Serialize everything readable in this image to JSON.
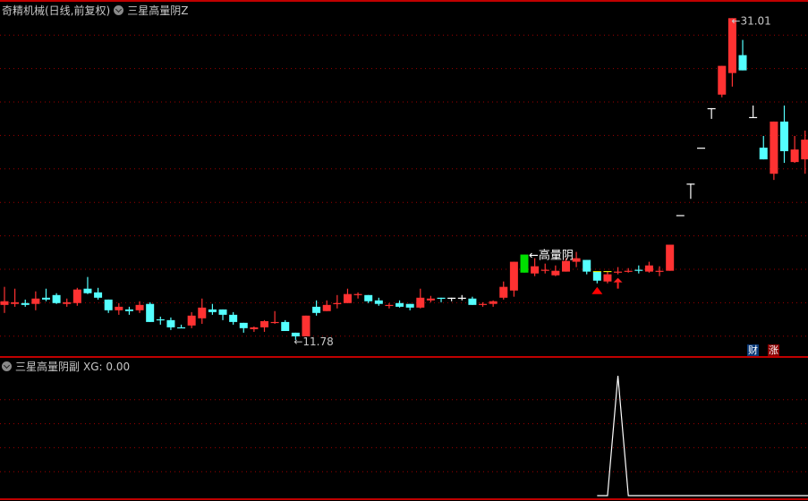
{
  "header": {
    "stock_title": "奇精机械(日线,前复权)",
    "indicator_main": "三星高量阴Z",
    "indicator_sub": "三星高量阴副",
    "sub_readout": "XG: 0.00"
  },
  "badges": {
    "finance": "财",
    "limit": "涨"
  },
  "colors": {
    "up": "#ff3232",
    "down": "#54ffff",
    "flat": "#ffffff",
    "signal": "#00e000",
    "grid": "#a00000",
    "border": "#c00000",
    "badge_finance": "#0a3a78",
    "badge_limit": "#8a0000"
  },
  "chart_data": {
    "type": "candlestick",
    "price_grid": [
      12,
      14,
      16,
      18,
      20,
      22,
      24,
      26,
      28,
      30
    ],
    "grid": true,
    "annotations": {
      "low_label": "←11.78",
      "low_index": 28,
      "high_label": "←31.01",
      "high_index": 70,
      "signal_label": "←高量阴",
      "signal_index": 50,
      "triangle_index": 57,
      "arrow_index": 59,
      "yellow_top_indices": [
        57,
        58
      ]
    },
    "candles": [
      [
        13.87,
        14.95,
        13.39,
        14.09
      ],
      [
        13.93,
        14.84,
        13.76,
        14.03
      ],
      [
        13.98,
        14.19,
        13.76,
        13.87
      ],
      [
        13.93,
        14.68,
        13.55,
        14.25
      ],
      [
        14.3,
        14.84,
        14.09,
        14.19
      ],
      [
        14.46,
        14.57,
        13.93,
        13.98
      ],
      [
        13.93,
        14.25,
        13.76,
        14.03
      ],
      [
        13.98,
        14.89,
        13.82,
        14.79
      ],
      [
        14.84,
        15.54,
        14.52,
        14.57
      ],
      [
        14.62,
        14.89,
        14.19,
        14.3
      ],
      [
        14.19,
        14.19,
        13.39,
        13.55
      ],
      [
        13.55,
        13.98,
        13.28,
        13.76
      ],
      [
        13.6,
        13.76,
        13.28,
        13.5
      ],
      [
        13.55,
        14.09,
        13.39,
        13.87
      ],
      [
        13.93,
        14.03,
        12.85,
        12.85
      ],
      [
        13.01,
        13.17,
        12.69,
        12.96
      ],
      [
        12.96,
        13.12,
        12.37,
        12.53
      ],
      [
        12.53,
        12.69,
        12.48,
        12.48
      ],
      [
        12.64,
        13.44,
        12.48,
        13.23
      ],
      [
        13.07,
        14.25,
        12.74,
        13.71
      ],
      [
        13.6,
        13.93,
        13.28,
        13.44
      ],
      [
        13.6,
        13.6,
        12.96,
        13.28
      ],
      [
        13.28,
        13.44,
        12.69,
        12.85
      ],
      [
        12.8,
        12.8,
        12.21,
        12.48
      ],
      [
        12.42,
        12.58,
        12.26,
        12.53
      ],
      [
        12.53,
        12.96,
        12.26,
        12.9
      ],
      [
        12.8,
        13.5,
        12.74,
        12.85
      ],
      [
        12.85,
        12.96,
        12.31,
        12.31
      ],
      [
        12.21,
        12.21,
        11.78,
        11.99
      ],
      [
        11.99,
        13.23,
        11.99,
        13.23
      ],
      [
        13.76,
        14.14,
        13.23,
        13.39
      ],
      [
        13.5,
        14.14,
        13.5,
        13.87
      ],
      [
        13.93,
        14.46,
        13.66,
        13.98
      ],
      [
        13.98,
        14.84,
        13.98,
        14.52
      ],
      [
        14.46,
        14.62,
        14.25,
        14.52
      ],
      [
        14.46,
        14.46,
        13.98,
        14.09
      ],
      [
        14.14,
        14.3,
        13.82,
        13.93
      ],
      [
        13.82,
        13.98,
        13.66,
        13.87
      ],
      [
        13.98,
        14.14,
        13.71,
        13.76
      ],
      [
        13.93,
        13.93,
        13.55,
        13.71
      ],
      [
        13.71,
        14.84,
        13.66,
        14.3
      ],
      [
        14.14,
        14.41,
        14.03,
        14.25
      ],
      [
        14.3,
        14.3,
        14.03,
        14.25
      ],
      [
        14.3,
        14.3,
        14.09,
        14.3
      ],
      [
        14.3,
        14.46,
        14.14,
        14.3
      ],
      [
        14.25,
        14.36,
        13.87,
        13.87
      ],
      [
        13.87,
        14.03,
        13.76,
        13.93
      ],
      [
        13.93,
        14.14,
        13.76,
        14.09
      ],
      [
        14.3,
        15.27,
        14.19,
        14.95
      ],
      [
        14.73,
        16.45,
        14.36,
        16.45
      ],
      [
        16.88,
        16.88,
        15.8,
        15.8
      ],
      [
        15.75,
        16.66,
        15.59,
        16.18
      ],
      [
        15.91,
        16.34,
        15.75,
        15.97
      ],
      [
        15.64,
        16.23,
        15.59,
        15.91
      ],
      [
        15.86,
        16.66,
        15.86,
        16.5
      ],
      [
        16.45,
        17.04,
        16.13,
        16.66
      ],
      [
        16.56,
        16.56,
        15.7,
        15.86
      ],
      [
        15.86,
        15.86,
        15.16,
        15.32
      ],
      [
        15.27,
        15.86,
        15.16,
        15.7
      ],
      [
        15.8,
        16.13,
        15.7,
        15.86
      ],
      [
        15.86,
        16.07,
        15.8,
        15.91
      ],
      [
        15.97,
        16.23,
        15.75,
        15.91
      ],
      [
        15.86,
        16.45,
        15.8,
        16.23
      ],
      [
        15.86,
        16.18,
        15.59,
        15.91
      ],
      [
        15.91,
        17.47,
        15.91,
        17.47
      ],
      [
        19.24,
        19.24,
        19.24,
        19.24
      ],
      [
        21.12,
        21.12,
        20.21,
        21.12
      ],
      [
        23.27,
        23.27,
        23.27,
        23.27
      ],
      [
        25.63,
        25.63,
        24.99,
        25.63
      ],
      [
        26.44,
        28.16,
        26.28,
        28.16
      ],
      [
        27.73,
        31.01,
        26.92,
        31.01
      ],
      [
        28.8,
        29.71,
        27.89,
        27.89
      ],
      [
        25.1,
        25.79,
        25.1,
        25.1
      ],
      [
        23.27,
        23.97,
        22.57,
        22.57
      ],
      [
        21.71,
        24.83,
        21.34,
        24.83
      ],
      [
        24.83,
        25.79,
        22.36,
        23.06
      ],
      [
        22.41,
        23.97,
        22.36,
        23.16
      ],
      [
        22.57,
        24.29,
        21.71,
        23.75
      ]
    ],
    "xg": {
      "start_index": 57,
      "values_from_start": [
        0,
        0,
        1,
        0,
        0,
        0,
        0,
        0,
        0,
        0,
        0,
        0,
        0,
        0,
        0,
        0,
        0,
        0,
        0,
        0,
        0
      ],
      "ylim": [
        0,
        1
      ],
      "grid": [
        0.2,
        0.4,
        0.6,
        0.8
      ]
    }
  }
}
